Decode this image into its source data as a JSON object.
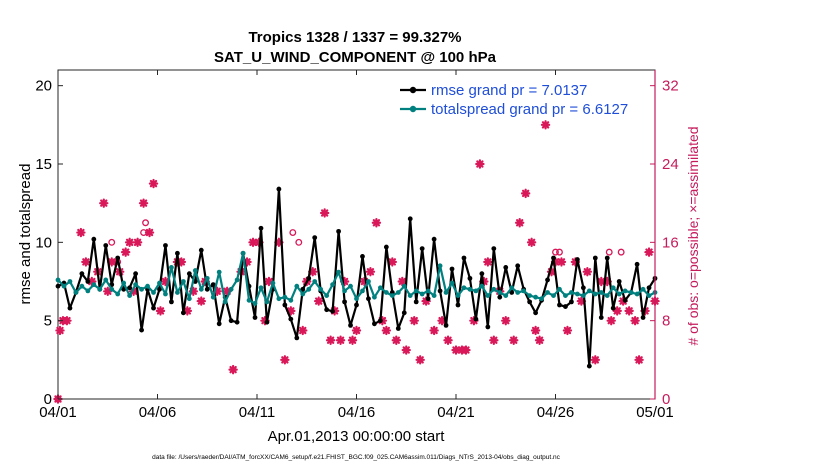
{
  "chart_data": {
    "type": "line",
    "title": "Tropics 1328 / 1337 = 99.327%",
    "subtitle": "SAT_U_WIND_COMPONENT @ 100 hPa",
    "xlabel": "Apr.01,2013 00:00:00 start",
    "ylabel_left": "rmse and totalspread",
    "ylabel_right": "# of obs: o=possible; ×=assimilated",
    "footnote": "data file: /Users/raeder/DAI/ATM_forcXX/CAM6_setup/f.e21.FHIST_BGC.f09_025.CAM6assim.011/Diags_NTrS_2013-04/obs_diag_output.nc",
    "xlim": [
      0,
      30
    ],
    "ylim_left": [
      0,
      21
    ],
    "ylim_right": [
      0,
      33.6
    ],
    "x_ticks": [
      0,
      5,
      10,
      15,
      20,
      25,
      30
    ],
    "x_tick_labels": [
      "04/01",
      "04/06",
      "04/11",
      "04/16",
      "04/21",
      "04/26",
      "05/01"
    ],
    "y_ticks_left": [
      0,
      5,
      10,
      15,
      20
    ],
    "y_tick_labels_left": [
      "0",
      "5",
      "10",
      "15",
      "20"
    ],
    "y_ticks_right": [
      0,
      8,
      16,
      24,
      32
    ],
    "y_tick_labels_right": [
      "0",
      "8",
      "16",
      "24",
      "32"
    ],
    "legend_position": "top-right",
    "colors": {
      "rmse": "#000000",
      "spread": "#00807f",
      "obs": "#d9185a",
      "right_axis": "#c51b5c",
      "legend_text": "#1f4ed8"
    },
    "series": [
      {
        "name": "rmse grand pr = 7.0137",
        "axis": "left",
        "values": [
          7.2,
          7.4,
          5.8,
          6.8,
          8.0,
          7.5,
          10.2,
          7.0,
          9.8,
          7.3,
          9.0,
          7.0,
          7.1,
          8.0,
          4.4,
          7.0,
          5.8,
          7.0,
          9.8,
          6.2,
          9.3,
          5.5,
          8.0,
          7.5,
          9.5,
          7.0,
          7.3,
          4.8,
          6.5,
          5.0,
          4.9,
          9.3,
          7.2,
          5.2,
          10.9,
          4.9,
          7.0,
          13.4,
          6.0,
          5.1,
          3.9,
          7.0,
          7.7,
          10.3,
          6.9,
          5.7,
          5.6,
          10.7,
          6.2,
          4.7,
          6.0,
          9.1,
          6.4,
          4.8,
          5.0,
          9.7,
          6.8,
          4.5,
          5.5,
          11.5,
          6.2,
          9.6,
          6.4,
          10.2,
          6.9,
          4.7,
          8.3,
          6.0,
          9.0,
          7.7,
          5.1,
          8.0,
          4.6,
          9.6,
          6.5,
          8.4,
          6.8,
          8.5,
          7.0,
          6.2,
          5.5,
          6.3,
          7.6,
          9.0,
          6.0,
          5.9,
          6.2,
          8.9,
          7.1,
          2.1,
          9.0,
          5.2,
          9.0,
          5.8,
          7.5,
          6.3,
          6.8,
          8.6,
          5.2,
          7.1,
          7.7
        ],
        "marker": "filled-circle"
      },
      {
        "name": "totalspread grand pr = 6.6127",
        "axis": "left",
        "values": [
          7.6,
          7.2,
          7.5,
          6.8,
          7.2,
          6.9,
          7.3,
          7.0,
          7.6,
          7.0,
          6.7,
          7.4,
          6.6,
          7.3,
          7.0,
          7.2,
          6.8,
          7.4,
          6.7,
          8.4,
          6.8,
          7.5,
          6.4,
          8.2,
          7.0,
          7.7,
          6.5,
          8.1,
          6.2,
          7.0,
          7.6,
          9.3,
          6.3,
          6.1,
          7.1,
          6.2,
          7.4,
          6.4,
          6.5,
          6.3,
          7.2,
          6.7,
          7.0,
          7.5,
          7.0,
          6.6,
          7.3,
          8.1,
          6.9,
          7.2,
          6.4,
          6.9,
          7.5,
          6.5,
          7.1,
          6.8,
          6.6,
          6.8,
          7.2,
          6.6,
          6.9,
          6.7,
          6.9,
          6.6,
          8.5,
          6.8,
          7.4,
          6.6,
          7.1,
          7.0,
          6.9,
          7.2,
          6.6,
          7.0,
          6.8,
          6.6,
          7.1,
          6.8,
          6.9,
          6.6,
          6.5,
          6.4,
          6.8,
          6.6,
          7.0,
          6.6,
          6.8,
          6.7,
          6.6,
          6.9,
          6.7,
          6.8,
          6.6,
          7.1,
          6.7,
          6.9,
          6.8,
          6.7,
          7.0,
          6.6,
          6.8
        ],
        "marker": "filled-circle"
      },
      {
        "name": "obs possible",
        "axis": "right",
        "x": [
          0.0,
          2.7,
          3.0,
          4.3,
          4.4,
          11.8,
          12.1,
          25.0,
          25.2,
          27.7,
          28.3
        ],
        "values": [
          0,
          16,
          14,
          17,
          18,
          17,
          16,
          15,
          15,
          15,
          15
        ],
        "marker": "open-circle"
      },
      {
        "name": "obs assimilated",
        "axis": "right",
        "x": [
          0.0,
          0.1,
          0.25,
          0.45,
          1.15,
          1.4,
          1.7,
          2.0,
          2.3,
          2.5,
          2.7,
          3.1,
          3.4,
          3.6,
          3.8,
          4.0,
          4.3,
          4.6,
          4.8,
          5.15,
          5.4,
          6.0,
          6.2,
          6.5,
          6.8,
          7.2,
          7.4,
          8.0,
          8.5,
          8.8,
          9.2,
          9.5,
          9.8,
          10.1,
          10.4,
          10.6,
          11.1,
          11.4,
          11.7,
          12.3,
          12.5,
          12.8,
          13.1,
          13.4,
          13.7,
          13.9,
          14.2,
          14.4,
          14.8,
          15.0,
          15.4,
          15.7,
          16.0,
          16.3,
          16.5,
          16.8,
          17.0,
          17.3,
          17.5,
          17.9,
          18.2,
          18.5,
          18.9,
          19.3,
          19.6,
          20.0,
          20.3,
          20.5,
          20.9,
          21.2,
          21.4,
          21.6,
          21.9,
          22.2,
          22.5,
          22.9,
          23.2,
          23.5,
          23.8,
          24.0,
          24.2,
          24.5,
          24.8,
          25.0,
          25.3,
          25.6,
          26.0,
          26.3,
          26.6,
          27.0,
          27.3,
          27.6,
          27.8,
          28.1,
          28.4,
          28.7,
          29.0,
          29.2,
          29.5,
          29.7,
          30.0
        ],
        "values": [
          0,
          7,
          8,
          8,
          17,
          14,
          12,
          13,
          20,
          11,
          14,
          13,
          15,
          16,
          11,
          16,
          20,
          17,
          22,
          9,
          12,
          14,
          14,
          9,
          11,
          10,
          12,
          11,
          11,
          3,
          13,
          14,
          16,
          16,
          8,
          12,
          16,
          4,
          9,
          7,
          12,
          13,
          10,
          19,
          6,
          9,
          6,
          12,
          6,
          7,
          12,
          13,
          18,
          8,
          7,
          14,
          6,
          12,
          5,
          8,
          4,
          10,
          7,
          8,
          6,
          5,
          5,
          5,
          8,
          24,
          12,
          14,
          6,
          11,
          8,
          6,
          18,
          21,
          16,
          7,
          6,
          28,
          13,
          14,
          14,
          7,
          14,
          10,
          13,
          4,
          12,
          12,
          8,
          9,
          10,
          9,
          8,
          4,
          9,
          15,
          10
        ],
        "marker": "asterisk"
      }
    ]
  }
}
